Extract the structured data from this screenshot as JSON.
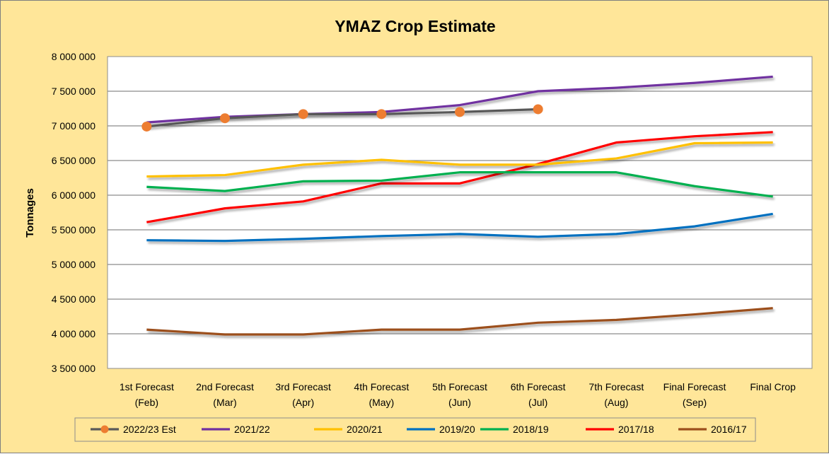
{
  "chart_data": {
    "type": "line",
    "title": "YMAZ Crop Estimate",
    "xlabel": "",
    "ylabel": "Tonnages",
    "ylim": [
      3500000,
      8000000
    ],
    "ytick_step": 500000,
    "ytick_labels": [
      "3 500 000",
      "4 000 000",
      "4 500 000",
      "5 000 000",
      "5 500 000",
      "6 000 000",
      "6 500 000",
      "7 000 000",
      "7 500 000",
      "8 000 000"
    ],
    "categories": [
      [
        "1st Forecast",
        "(Feb)"
      ],
      [
        "2nd Forecast",
        "(Mar)"
      ],
      [
        "3rd Forecast",
        "(Apr)"
      ],
      [
        "4th Forecast",
        "(May)"
      ],
      [
        "5th Forecast",
        "(Jun)"
      ],
      [
        "6th Forecast",
        "(Jul)"
      ],
      [
        "7th Forecast",
        "(Aug)"
      ],
      [
        "Final Forecast",
        "(Sep)"
      ],
      [
        "Final Crop",
        ""
      ]
    ],
    "grid": true,
    "legend_position": "bottom",
    "series": [
      {
        "name": "2022/23 Est",
        "color": "#595959",
        "marker_color": "#ed7d31",
        "marker": "circle",
        "values": [
          6990000,
          7110000,
          7170000,
          7170000,
          7200000,
          7240000,
          null,
          null,
          null
        ]
      },
      {
        "name": "2021/22",
        "color": "#7030a0",
        "values": [
          7050000,
          7130000,
          7170000,
          7200000,
          7300000,
          7500000,
          7550000,
          7620000,
          7710000
        ]
      },
      {
        "name": "2020/21",
        "color": "#ffc000",
        "values": [
          6270000,
          6290000,
          6440000,
          6510000,
          6440000,
          6440000,
          6530000,
          6750000,
          6760000
        ]
      },
      {
        "name": "2019/20",
        "color": "#0070c0",
        "values": [
          5350000,
          5340000,
          5370000,
          5410000,
          5440000,
          5400000,
          5440000,
          5550000,
          5730000
        ]
      },
      {
        "name": "2018/19",
        "color": "#00b050",
        "values": [
          6120000,
          6060000,
          6200000,
          6210000,
          6330000,
          6330000,
          6330000,
          6130000,
          5980000
        ]
      },
      {
        "name": "2017/18",
        "color": "#ff0000",
        "values": [
          5610000,
          5810000,
          5910000,
          6170000,
          6170000,
          6450000,
          6760000,
          6850000,
          6910000
        ]
      },
      {
        "name": "2016/17",
        "color": "#9c4f1d",
        "values": [
          4060000,
          3990000,
          3990000,
          4060000,
          4060000,
          4160000,
          4200000,
          4280000,
          4370000
        ]
      }
    ]
  }
}
